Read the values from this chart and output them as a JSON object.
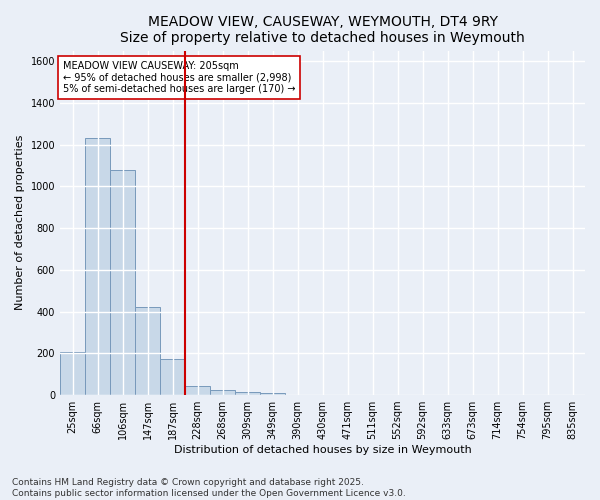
{
  "title": "MEADOW VIEW, CAUSEWAY, WEYMOUTH, DT4 9RY",
  "subtitle": "Size of property relative to detached houses in Weymouth",
  "xlabel": "Distribution of detached houses by size in Weymouth",
  "ylabel": "Number of detached properties",
  "categories": [
    "25sqm",
    "66sqm",
    "106sqm",
    "147sqm",
    "187sqm",
    "228sqm",
    "268sqm",
    "309sqm",
    "349sqm",
    "390sqm",
    "430sqm",
    "471sqm",
    "511sqm",
    "552sqm",
    "592sqm",
    "633sqm",
    "673sqm",
    "714sqm",
    "754sqm",
    "795sqm",
    "835sqm"
  ],
  "values": [
    205,
    1230,
    1080,
    420,
    175,
    45,
    25,
    15,
    10,
    0,
    0,
    0,
    0,
    0,
    0,
    0,
    0,
    0,
    0,
    0,
    0
  ],
  "bar_color": "#c8d8e8",
  "bar_edge_color": "#7799bb",
  "vline_x": 4.5,
  "vline_color": "#cc0000",
  "annotation_text": "MEADOW VIEW CAUSEWAY: 205sqm\n← 95% of detached houses are smaller (2,998)\n5% of semi-detached houses are larger (170) →",
  "annotation_box_color": "#ffffff",
  "annotation_box_edge_color": "#cc0000",
  "ylim": [
    0,
    1650
  ],
  "yticks": [
    0,
    200,
    400,
    600,
    800,
    1000,
    1200,
    1400,
    1600
  ],
  "bg_color": "#eaeff7",
  "plot_bg_color": "#eaeff7",
  "grid_color": "#ffffff",
  "footer_line1": "Contains HM Land Registry data © Crown copyright and database right 2025.",
  "footer_line2": "Contains public sector information licensed under the Open Government Licence v3.0.",
  "title_fontsize": 10,
  "subtitle_fontsize": 9,
  "annotation_fontsize": 7,
  "footer_fontsize": 6.5,
  "ylabel_fontsize": 8,
  "xlabel_fontsize": 8,
  "tick_fontsize": 7
}
